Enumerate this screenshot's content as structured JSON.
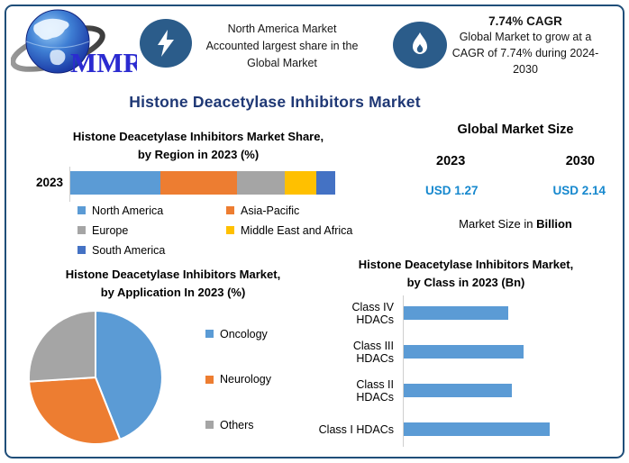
{
  "colors": {
    "border_navy": "#1F4E79",
    "title_navy": "#1F3875",
    "icon_bg": "#2B5C8A",
    "usd_blue": "#1688CE",
    "series_blue": "#5B9BD5",
    "series_orange": "#ED7D31",
    "series_gray": "#A5A5A5",
    "series_yellow": "#FFC000",
    "series_darkblue": "#4472C4"
  },
  "header": {
    "logo": {
      "text": "MMR",
      "icon": "globe-icon"
    },
    "highlight_share": {
      "icon": "lightning-icon",
      "lines": [
        "North America Market",
        "Accounted largest share in the",
        "Global Market"
      ]
    },
    "highlight_cagr": {
      "icon": "flame-icon",
      "title": "7.74% CAGR",
      "lines": [
        "Global Market to grow at a",
        "CAGR of 7.74% during 2024-",
        "2030"
      ]
    }
  },
  "page_title": "Histone Deacetylase Inhibitors Market",
  "market_size": {
    "title": "Global Market Size",
    "years": [
      "2023",
      "2030"
    ],
    "values": [
      "USD 1.27",
      "USD 2.14"
    ],
    "caption_prefix": "Market Size in ",
    "caption_bold": "Billion"
  },
  "chart_data": [
    {
      "type": "bar",
      "subtype": "stacked-horizontal-100pct",
      "title": "Histone Deacetylase Inhibitors Market Share, by Region in 2023 (%)",
      "title_lines": [
        "Histone Deacetylase Inhibitors Market Share,",
        "by Region in 2023 (%)"
      ],
      "categories": [
        "2023"
      ],
      "series": [
        {
          "name": "North America",
          "value": 34,
          "color": "#5B9BD5"
        },
        {
          "name": "Asia-Pacific",
          "value": 29,
          "color": "#ED7D31"
        },
        {
          "name": "Europe",
          "value": 18,
          "color": "#A5A5A5"
        },
        {
          "name": "Middle East and Africa",
          "value": 12,
          "color": "#FFC000"
        },
        {
          "name": "South America",
          "value": 7,
          "color": "#4472C4"
        }
      ],
      "legend_position": "bottom",
      "grid": false
    },
    {
      "type": "pie",
      "title": "Histone Deacetylase Inhibitors Market, by Application In 2023 (%)",
      "title_lines": [
        "Histone Deacetylase Inhibitors Market,",
        "by Application In 2023 (%)"
      ],
      "labels": [
        "Oncology",
        "Neurology",
        "Others"
      ],
      "values": [
        44,
        30,
        26
      ],
      "colors": [
        "#5B9BD5",
        "#ED7D31",
        "#A5A5A5"
      ],
      "start_angle_deg": 0,
      "direction": "clockwise",
      "legend_position": "right"
    },
    {
      "type": "bar",
      "subtype": "horizontal",
      "title": "Histone Deacetylase Inhibitors Market, by  Class in 2023 (Bn)",
      "title_lines": [
        "Histone Deacetylase Inhibitors Market,",
        "by  Class in 2023 (Bn)"
      ],
      "categories": [
        "Class IV HDACs",
        "Class III HDACs",
        "Class II HDACs",
        "Class I HDACs"
      ],
      "values": [
        0.28,
        0.32,
        0.29,
        0.39
      ],
      "xlim": [
        0,
        0.47
      ],
      "bar_color": "#5B9BD5",
      "grid": false,
      "legend_position": "none"
    }
  ]
}
